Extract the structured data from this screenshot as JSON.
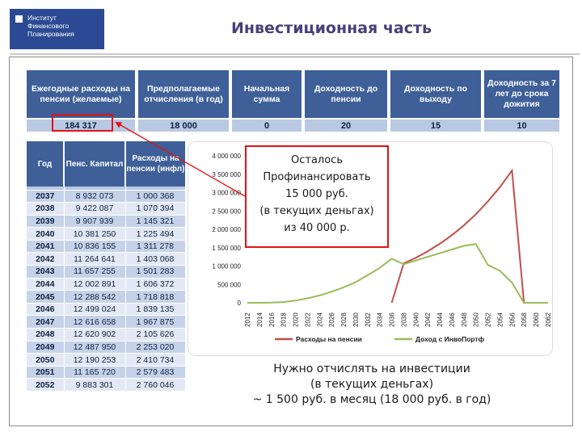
{
  "logo": {
    "line1": "Институт",
    "line2": "Финансового",
    "line3": "Планирования"
  },
  "title": "Инвестиционная часть",
  "params": {
    "headers": [
      "Ежегодные расходы на пенсии (желаемые)",
      "Предполагаемые отчисления (в год)",
      "Начальная сумма",
      "Доходность до пенсии",
      "Доходность по выходу",
      "Доходность за 7 лет до срока дожития"
    ],
    "values": [
      "184 317",
      "18 000",
      "0",
      "20",
      "15",
      "10"
    ]
  },
  "years_table": {
    "headers": [
      "Год",
      "Пенс. Капитал",
      "Расходы на пенсии (инфл)"
    ],
    "rows": [
      [
        "2037",
        "8 932 073",
        "1 000 368"
      ],
      [
        "2038",
        "9 422 087",
        "1 070 394"
      ],
      [
        "2039",
        "9 907 939",
        "1 145 321"
      ],
      [
        "2040",
        "10 381 250",
        "1 225 494"
      ],
      [
        "2041",
        "10 836 155",
        "1 311 278"
      ],
      [
        "2042",
        "11 264 641",
        "1 403 068"
      ],
      [
        "2043",
        "11 657 255",
        "1 501 283"
      ],
      [
        "2044",
        "12 002 891",
        "1 606 372"
      ],
      [
        "2045",
        "12 288 542",
        "1 718 818"
      ],
      [
        "2046",
        "12 499 024",
        "1 839 135"
      ],
      [
        "2047",
        "12 616 658",
        "1 967 875"
      ],
      [
        "2048",
        "12 620 902",
        "2 105 626"
      ],
      [
        "2049",
        "12 487 950",
        "2 253 020"
      ],
      [
        "2050",
        "12 190 253",
        "2 410 734"
      ],
      [
        "2051",
        "11 165 720",
        "2 579 483"
      ],
      [
        "2052",
        "9 883 301",
        "2 760 046"
      ]
    ]
  },
  "chart_data": {
    "type": "line",
    "ylim": [
      0,
      4000000
    ],
    "y_ticks": [
      "0",
      "500 000",
      "1 000 000",
      "1 500 000",
      "2 000 000",
      "2 500 000",
      "3 000 000",
      "3 500 000",
      "4 000 000"
    ],
    "x": [
      2012,
      2014,
      2016,
      2018,
      2020,
      2022,
      2024,
      2026,
      2028,
      2030,
      2032,
      2034,
      2036,
      2038,
      2040,
      2042,
      2044,
      2046,
      2048,
      2050,
      2052,
      2054,
      2056,
      2058,
      2060,
      2062
    ],
    "x_labels": [
      "2012",
      "2014",
      "2016",
      "2018",
      "2020",
      "2022",
      "2024",
      "2026",
      "2028",
      "2030",
      "2032",
      "2034",
      "2036",
      "2038",
      "2040",
      "2042",
      "2044",
      "2046",
      "2048",
      "2050",
      "2052",
      "2054",
      "2056",
      "2058",
      "2060",
      "2062"
    ],
    "series": [
      {
        "name": "Расходы на пенсии",
        "color": "#c0504d",
        "values": [
          null,
          null,
          null,
          null,
          null,
          null,
          null,
          null,
          null,
          null,
          null,
          null,
          0,
          1070000,
          1225000,
          1403000,
          1606000,
          1839000,
          2106000,
          2411000,
          2760000,
          3150000,
          3600000,
          0,
          0,
          0
        ]
      },
      {
        "name": "Доход с ИнвоПортф",
        "color": "#9bbb59",
        "values": [
          0,
          0,
          5000,
          20000,
          60000,
          120000,
          200000,
          300000,
          420000,
          560000,
          750000,
          950000,
          1200000,
          1050000,
          1150000,
          1250000,
          1350000,
          1450000,
          1550000,
          1600000,
          1030000,
          870000,
          550000,
          0,
          0,
          0
        ]
      }
    ]
  },
  "callout": {
    "line1": "Осталось",
    "line2": "Профинансировать",
    "line3": "15 000 руб.",
    "line4": "(в текущих деньгах)",
    "line5": "из 40 000  р."
  },
  "note": {
    "line1": "Нужно отчислять на инвестиции",
    "line2": "(в текущих деньгах)",
    "line3": "~ 1 500 руб. в месяц (18 000 руб. в год)"
  },
  "colors": {
    "header_blue": "#3e5f98",
    "row_light": "#e3e9f4",
    "row_mid": "#c5d2e8",
    "highlight_red": "#e01313"
  }
}
